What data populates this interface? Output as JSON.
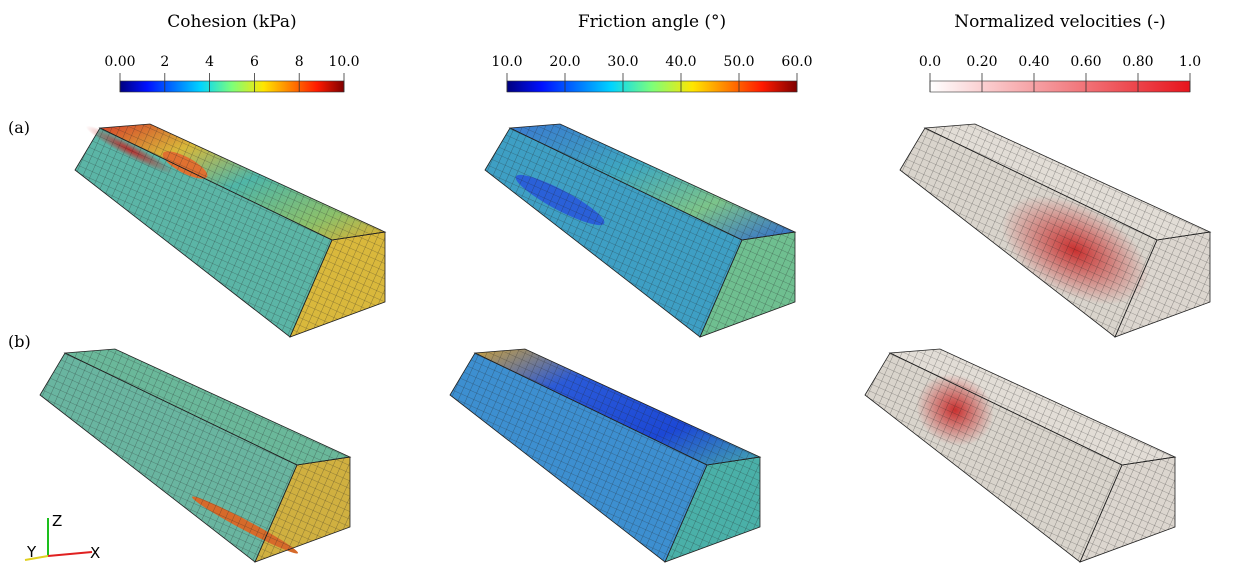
{
  "colorbars": [
    {
      "title": "Cohesion (kPa)",
      "ticks": [
        {
          "value": 0,
          "label": "0.00"
        },
        2,
        4,
        6,
        8,
        {
          "value": 10,
          "label": "10.0"
        }
      ]
    },
    {
      "title": "Friction angle (°)",
      "ticks": [
        {
          "value": 10,
          "label": "10.0"
        },
        {
          "value": 20,
          "label": "20.0"
        },
        {
          "value": 30,
          "label": "30.0"
        },
        {
          "value": 40,
          "label": "40.0"
        },
        {
          "value": 50,
          "label": "50.0"
        },
        {
          "value": 60,
          "label": "60.0"
        }
      ]
    },
    {
      "title": "Normalized velocities (-)",
      "ticks": [
        {
          "value": 0,
          "label": "0.0"
        },
        {
          "value": 0.2,
          "label": "0.20"
        },
        {
          "value": 0.4,
          "label": "0.40"
        },
        {
          "value": 0.6,
          "label": "0.60"
        },
        {
          "value": 0.8,
          "label": "0.80"
        },
        {
          "value": 1,
          "label": "1.0"
        }
      ]
    }
  ],
  "panels": [
    "(a)",
    "(b)"
  ],
  "axes": {
    "z": "Z",
    "y": "Y",
    "x": "X"
  }
}
